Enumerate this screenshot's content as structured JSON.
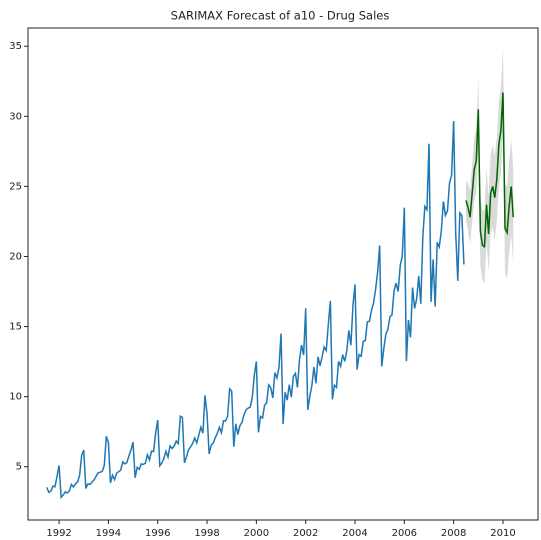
{
  "chart_data": {
    "type": "line",
    "title": "SARIMAX Forecast of a10 - Drug Sales",
    "xlim": [
      1990.74,
      2011.42
    ],
    "xticks": [
      1992,
      1994,
      1996,
      1998,
      2000,
      2002,
      2004,
      2006,
      2008,
      2010
    ],
    "ylim": [
      1.2,
      36.3
    ],
    "yticks": [
      5,
      10,
      15,
      20,
      25,
      30,
      35
    ],
    "series": [
      {
        "color": "#1f77b4",
        "x": [
          "1991-07",
          "1991-08",
          "1991-09",
          "1991-10",
          "1991-11",
          "1991-12",
          "1992-01",
          "1992-02",
          "1992-03",
          "1992-04",
          "1992-05",
          "1992-06",
          "1992-07",
          "1992-08",
          "1992-09",
          "1992-10",
          "1992-11",
          "1992-12",
          "1993-01",
          "1993-02",
          "1993-03",
          "1993-04",
          "1993-05",
          "1993-06",
          "1993-07",
          "1993-08",
          "1993-09",
          "1993-10",
          "1993-11",
          "1993-12",
          "1994-01",
          "1994-02",
          "1994-03",
          "1994-04",
          "1994-05",
          "1994-06",
          "1994-07",
          "1994-08",
          "1994-09",
          "1994-10",
          "1994-11",
          "1994-12",
          "1995-01",
          "1995-02",
          "1995-03",
          "1995-04",
          "1995-05",
          "1995-06",
          "1995-07",
          "1995-08",
          "1995-09",
          "1995-10",
          "1995-11",
          "1995-12",
          "1996-01",
          "1996-02",
          "1996-03",
          "1996-04",
          "1996-05",
          "1996-06",
          "1996-07",
          "1996-08",
          "1996-09",
          "1996-10",
          "1996-11",
          "1996-12",
          "1997-01",
          "1997-02",
          "1997-03",
          "1997-04",
          "1997-05",
          "1997-06",
          "1997-07",
          "1997-08",
          "1997-09",
          "1997-10",
          "1997-11",
          "1997-12",
          "1998-01",
          "1998-02",
          "1998-03",
          "1998-04",
          "1998-05",
          "1998-06",
          "1998-07",
          "1998-08",
          "1998-09",
          "1998-10",
          "1998-11",
          "1998-12",
          "1999-01",
          "1999-02",
          "1999-03",
          "1999-04",
          "1999-05",
          "1999-06",
          "1999-07",
          "1999-08",
          "1999-09",
          "1999-10",
          "1999-11",
          "1999-12",
          "2000-01",
          "2000-02",
          "2000-03",
          "2000-04",
          "2000-05",
          "2000-06",
          "2000-07",
          "2000-08",
          "2000-09",
          "2000-10",
          "2000-11",
          "2000-12",
          "2001-01",
          "2001-02",
          "2001-03",
          "2001-04",
          "2001-05",
          "2001-06",
          "2001-07",
          "2001-08",
          "2001-09",
          "2001-10",
          "2001-11",
          "2001-12",
          "2002-01",
          "2002-02",
          "2002-03",
          "2002-04",
          "2002-05",
          "2002-06",
          "2002-07",
          "2002-08",
          "2002-09",
          "2002-10",
          "2002-11",
          "2002-12",
          "2003-01",
          "2003-02",
          "2003-03",
          "2003-04",
          "2003-05",
          "2003-06",
          "2003-07",
          "2003-08",
          "2003-09",
          "2003-10",
          "2003-11",
          "2003-12",
          "2004-01",
          "2004-02",
          "2004-03",
          "2004-04",
          "2004-05",
          "2004-06",
          "2004-07",
          "2004-08",
          "2004-09",
          "2004-10",
          "2004-11",
          "2004-12",
          "2005-01",
          "2005-02",
          "2005-03",
          "2005-04",
          "2005-05",
          "2005-06",
          "2005-07",
          "2005-08",
          "2005-09",
          "2005-10",
          "2005-11",
          "2005-12",
          "2006-01",
          "2006-02",
          "2006-03",
          "2006-04",
          "2006-05",
          "2006-06",
          "2006-07",
          "2006-08",
          "2006-09",
          "2006-10",
          "2006-11",
          "2006-12",
          "2007-01",
          "2007-02",
          "2007-03",
          "2007-04",
          "2007-05",
          "2007-06",
          "2007-07",
          "2007-08",
          "2007-09",
          "2007-10",
          "2007-11",
          "2007-12",
          "2008-01",
          "2008-02",
          "2008-03",
          "2008-04",
          "2008-05",
          "2008-06"
        ],
        "values": [
          3.526591,
          3.180891,
          3.252221,
          3.611003,
          3.565869,
          4.306371,
          5.088335,
          2.81452,
          2.985811,
          3.20478,
          3.127578,
          3.270523,
          3.737851,
          3.558776,
          3.777202,
          3.92449,
          4.386531,
          5.810549,
          6.192068,
          3.450857,
          3.772307,
          3.734303,
          3.905399,
          4.049687,
          4.315566,
          4.562185,
          4.608662,
          4.667851,
          5.093841,
          7.179962,
          6.731473,
          3.841278,
          4.394076,
          4.075341,
          4.540645,
          4.645615,
          4.752607,
          5.350605,
          5.204455,
          5.301651,
          5.773742,
          6.204593,
          6.749484,
          4.216067,
          4.949349,
          4.823045,
          5.194754,
          5.170787,
          5.256742,
          5.855277,
          5.490729,
          6.115293,
          6.088473,
          7.416598,
          8.329452,
          5.069796,
          5.262557,
          5.597126,
          6.110296,
          5.689161,
          6.486849,
          6.300569,
          6.467476,
          6.828629,
          6.649078,
          8.606937,
          8.524471,
          5.277918,
          5.714303,
          6.214529,
          6.411929,
          6.667716,
          7.050831,
          6.704919,
          7.250988,
          7.819733,
          7.398101,
          10.096233,
          8.798513,
          5.918261,
          6.534493,
          6.675736,
          7.064201,
          7.383381,
          7.813496,
          7.431892,
          8.275117,
          8.260441,
          8.596156,
          10.558939,
          10.391416,
          6.421535,
          8.062619,
          7.297739,
          7.936916,
          8.165323,
          8.71742,
          9.070964,
          9.177113,
          9.251887,
          9.933136,
          11.532974,
          12.511462,
          7.457199,
          8.591191,
          8.474,
          9.386803,
          9.560399,
          10.834295,
          10.643751,
          9.908162,
          11.710041,
          11.340151,
          12.079132,
          14.497581,
          8.049275,
          10.312891,
          9.753358,
          10.850382,
          9.961719,
          11.443601,
          11.659239,
          10.64706,
          12.652134,
          13.674466,
          12.965735,
          16.300269,
          9.053485,
          10.002449,
          10.78875,
          12.106705,
          10.954101,
          12.844566,
          12.1965,
          12.854748,
          13.542004,
          13.28764,
          15.134918,
          16.82835,
          9.800215,
          10.816994,
          10.654223,
          12.512323,
          12.16121,
          12.998046,
          12.517276,
          13.268658,
          14.733622,
          13.669382,
          16.503966,
          18.003768,
          11.93803,
          12.9979,
          12.882645,
          13.943447,
          13.989472,
          15.339097,
          15.370764,
          16.142005,
          16.685754,
          17.636728,
          18.869325,
          20.778723,
          12.154552,
          13.402392,
          14.459239,
          14.795102,
          15.705248,
          15.82955,
          17.554701,
          18.100864,
          17.496668,
          19.347265,
          20.031291,
          23.486694,
          12.536987,
          15.467018,
          14.233539,
          17.783058,
          16.291602,
          16.980282,
          18.612189,
          16.623343,
          21.430241,
          23.575517,
          23.334206,
          28.038383,
          16.763869,
          19.792754,
          16.427305,
          21.000742,
          20.681002,
          21.83489,
          23.930204,
          22.930357,
          23.26334,
          25.25003,
          25.80609,
          29.665356,
          21.654285,
          18.264945,
          23.107677,
          22.91251,
          19.43174
        ]
      },
      {
        "color": "#006400",
        "band_color": "#d3d3d3",
        "x": [
          "2008-07",
          "2008-08",
          "2008-09",
          "2008-10",
          "2008-11",
          "2008-12",
          "2009-01",
          "2009-02",
          "2009-03",
          "2009-04",
          "2009-05",
          "2009-06",
          "2009-07",
          "2009-08",
          "2009-09",
          "2009-10",
          "2009-11",
          "2009-12",
          "2010-01",
          "2010-02",
          "2010-03",
          "2010-04",
          "2010-05",
          "2010-06"
        ],
        "values": [
          24.0,
          23.5,
          22.8,
          24.5,
          26.2,
          26.8,
          30.5,
          21.8,
          20.8,
          20.7,
          23.7,
          21.6,
          24.5,
          25.0,
          24.2,
          25.5,
          28.0,
          29.0,
          31.7,
          22.0,
          21.7,
          23.6,
          25.0,
          22.8
        ],
        "lower": [
          22.6,
          21.8,
          20.9,
          22.4,
          24.0,
          24.5,
          28.1,
          19.3,
          18.3,
          18.1,
          21.1,
          18.9,
          21.7,
          22.1,
          21.2,
          22.5,
          24.9,
          25.9,
          28.5,
          18.8,
          18.4,
          20.3,
          21.6,
          19.4
        ],
        "upper": [
          25.4,
          25.2,
          24.7,
          26.6,
          28.4,
          29.1,
          32.9,
          24.3,
          23.3,
          23.3,
          26.3,
          24.3,
          27.3,
          27.9,
          27.2,
          28.5,
          31.1,
          32.1,
          34.9,
          25.2,
          25.0,
          26.9,
          28.4,
          26.2
        ]
      }
    ]
  }
}
